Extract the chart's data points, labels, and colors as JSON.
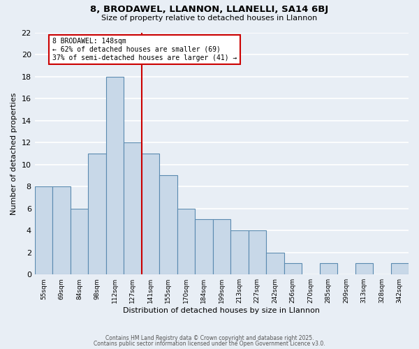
{
  "title": "8, BRODAWEL, LLANNON, LLANELLI, SA14 6BJ",
  "subtitle": "Size of property relative to detached houses in Llannon",
  "xlabel": "Distribution of detached houses by size in Llannon",
  "ylabel": "Number of detached properties",
  "bins": [
    "55sqm",
    "69sqm",
    "84sqm",
    "98sqm",
    "112sqm",
    "127sqm",
    "141sqm",
    "155sqm",
    "170sqm",
    "184sqm",
    "199sqm",
    "213sqm",
    "227sqm",
    "242sqm",
    "256sqm",
    "270sqm",
    "285sqm",
    "299sqm",
    "313sqm",
    "328sqm",
    "342sqm"
  ],
  "values": [
    8,
    8,
    6,
    11,
    18,
    12,
    11,
    9,
    6,
    5,
    5,
    4,
    4,
    2,
    1,
    0,
    1,
    0,
    1,
    0,
    1
  ],
  "bar_color": "#c8d8e8",
  "bar_edge_color": "#5a8ab0",
  "ylim": [
    0,
    22
  ],
  "yticks": [
    0,
    2,
    4,
    6,
    8,
    10,
    12,
    14,
    16,
    18,
    20,
    22
  ],
  "vline_x_index": 6,
  "vline_color": "#cc0000",
  "annotation_title": "8 BRODAWEL: 148sqm",
  "annotation_line1": "← 62% of detached houses are smaller (69)",
  "annotation_line2": "37% of semi-detached houses are larger (41) →",
  "annotation_box_color": "#ffffff",
  "annotation_box_edge": "#cc0000",
  "background_color": "#e8eef5",
  "grid_color": "#ffffff",
  "footer1": "Contains HM Land Registry data © Crown copyright and database right 2025.",
  "footer2": "Contains public sector information licensed under the Open Government Licence v3.0."
}
